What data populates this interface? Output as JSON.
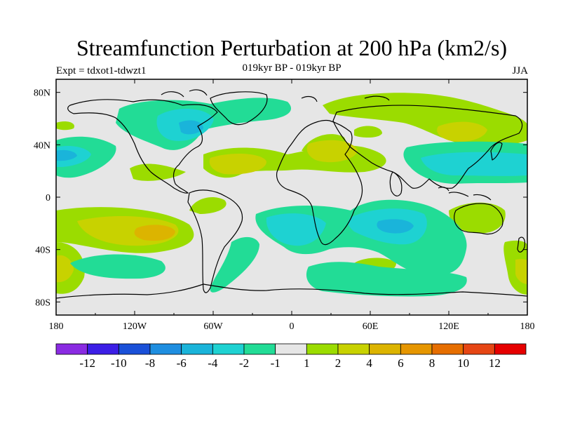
{
  "title": "Streamfunction Perturbation at 200 hPa (km2/s)",
  "left_label": "Expt = tdxot1-tdwzt1",
  "center_label": "019kyr BP - 019kyr BP",
  "right_label": "JJA",
  "chart_data": {
    "type": "filled-contour-map",
    "projection": "cylindrical-equidistant",
    "variable": "streamfunction perturbation at 200 hPa",
    "units": "km2/s",
    "lon_range": [
      -180,
      180
    ],
    "lat_range": [
      -90,
      90
    ],
    "x_tick_labels": [
      "180",
      "120W",
      "60W",
      "0",
      "60E",
      "120E",
      "180"
    ],
    "y_tick_labels": [
      "80N",
      "40N",
      "0",
      "40S",
      "80S"
    ],
    "colorbar": {
      "tick_labels": [
        "-12",
        "-10",
        "-8",
        "-6",
        "-4",
        "-2",
        "-1",
        "1",
        "2",
        "4",
        "6",
        "8",
        "10",
        "12"
      ],
      "colors": [
        "#8a2be2",
        "#3c1ee6",
        "#1a50d8",
        "#1e8ee0",
        "#1ab4da",
        "#1ed2d2",
        "#22dc96",
        "#e6e6e6",
        "#9bdc00",
        "#c8d200",
        "#dcb400",
        "#e69600",
        "#e66e00",
        "#e64614",
        "#e60000"
      ]
    },
    "anomaly_centers": [
      {
        "lon": -170,
        "lat": 30,
        "level": -4
      },
      {
        "lon": -110,
        "lat": 65,
        "level": -4
      },
      {
        "lon": 75,
        "lat": -30,
        "level": -4
      },
      {
        "lon": 10,
        "lat": -40,
        "level": -2
      },
      {
        "lon": 135,
        "lat": 30,
        "level": -2
      },
      {
        "lon": 30,
        "lat": -25,
        "level": -2
      },
      {
        "lon": -100,
        "lat": -30,
        "level": 4
      },
      {
        "lon": -45,
        "lat": 30,
        "level": 2
      },
      {
        "lon": 40,
        "lat": 40,
        "level": 4
      },
      {
        "lon": 115,
        "lat": 65,
        "level": 2
      },
      {
        "lon": 170,
        "lat": -60,
        "level": 4
      }
    ]
  }
}
